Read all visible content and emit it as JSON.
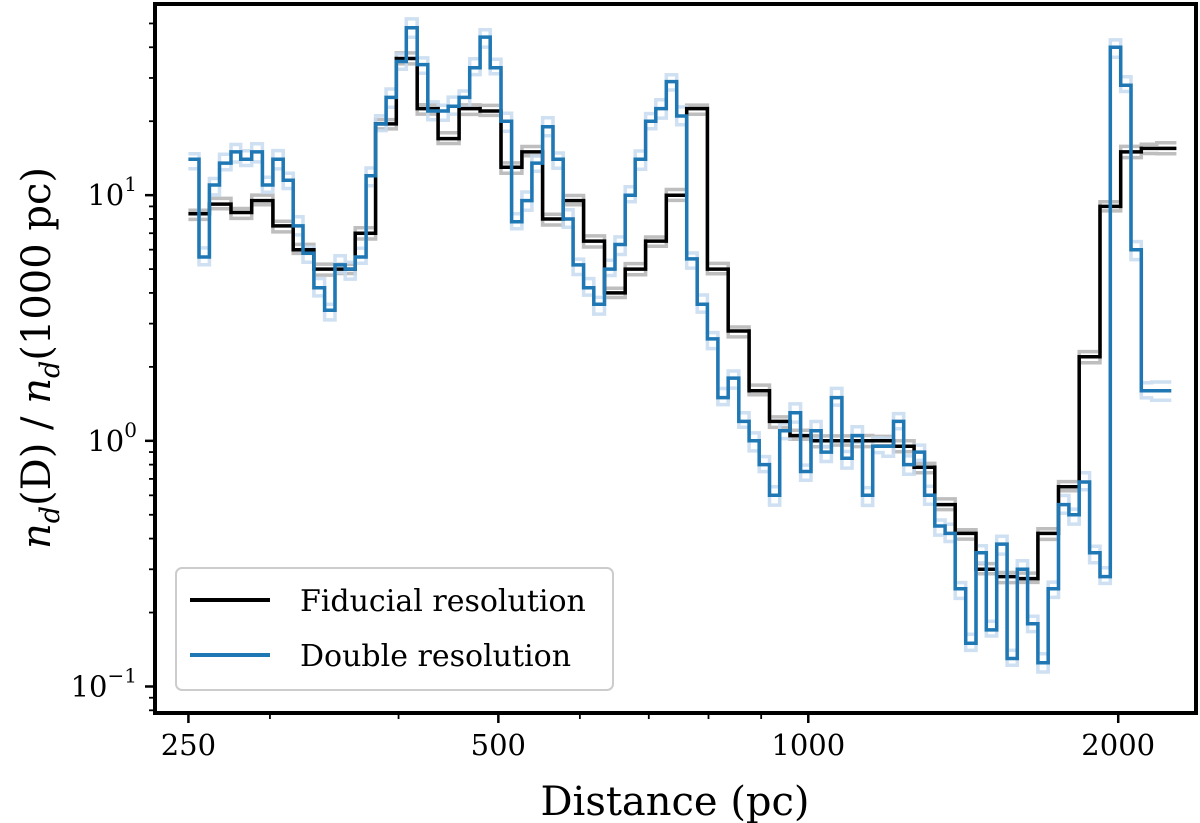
{
  "chart_data": {
    "type": "line",
    "title": "",
    "xlabel": "Distance (pc)",
    "ylabel": "n_d(D) / n_d(1000pc)",
    "ylabel_parts": {
      "n1": "n",
      "sub1": "d",
      "arg1": "(D)",
      "slash": " / ",
      "n2": "n",
      "sub2": "d",
      "arg2": "(1000 pc)"
    },
    "x_scale": "log",
    "y_scale": "log",
    "xlim": [
      232,
      2380
    ],
    "ylim": [
      0.078,
      60
    ],
    "x_ticks": [
      250,
      500,
      1000,
      2000
    ],
    "x_tick_labels": [
      "250",
      "500",
      "1000",
      "2000"
    ],
    "y_ticks": [
      0.1,
      1,
      10
    ],
    "y_tick_labels": [
      {
        "base": "10",
        "exp": "−1"
      },
      {
        "base": "10",
        "exp": "0"
      },
      {
        "base": "10",
        "exp": "1"
      }
    ],
    "legend": {
      "position": "lower-left",
      "entries": [
        "Fiducial resolution",
        "Double resolution"
      ]
    },
    "colors": {
      "fiducial": "#000000",
      "double": "#1f77b4",
      "fiducial_band": "#b3b3b3",
      "double_band": "#c6dbef"
    },
    "series": [
      {
        "name": "Fiducial resolution",
        "step": "post",
        "x": [
          250,
          262,
          275,
          288,
          302,
          316,
          331,
          347,
          363,
          380,
          398,
          417,
          437,
          458,
          480,
          503,
          527,
          552,
          578,
          605,
          634,
          664,
          695,
          728,
          762,
          798,
          836,
          876,
          917,
          960,
          1006,
          1053,
          1103,
          1155,
          1210,
          1267,
          1327,
          1389,
          1455,
          1524,
          1596,
          1671,
          1750,
          1833,
          1920,
          2011,
          2106,
          2180
        ],
        "y": [
          8.4,
          9.2,
          8.5,
          9.5,
          7.5,
          6.0,
          5.0,
          5.0,
          7.0,
          19.5,
          36.0,
          22.5,
          17.0,
          22.5,
          22.0,
          13.0,
          15.0,
          8.0,
          9.5,
          6.5,
          4.0,
          5.0,
          6.5,
          10.0,
          22.5,
          5.0,
          2.8,
          1.6,
          1.2,
          1.05,
          1.0,
          1.0,
          1.0,
          1.0,
          0.95,
          0.78,
          0.55,
          0.42,
          0.3,
          0.28,
          0.275,
          0.42,
          0.65,
          2.2,
          9.0,
          15.0,
          15.5,
          15.5
        ]
      },
      {
        "name": "Double resolution",
        "step": "post",
        "x": [
          250,
          256,
          262,
          268,
          275,
          281,
          288,
          295,
          302,
          309,
          316,
          323,
          331,
          339,
          347,
          355,
          363,
          372,
          380,
          389,
          398,
          407,
          417,
          427,
          437,
          447,
          458,
          469,
          480,
          491,
          503,
          515,
          527,
          539,
          552,
          565,
          578,
          591,
          605,
          619,
          634,
          649,
          664,
          679,
          695,
          711,
          728,
          745,
          762,
          780,
          798,
          817,
          836,
          856,
          876,
          896,
          917,
          938,
          960,
          983,
          1006,
          1029,
          1053,
          1078,
          1103,
          1129,
          1155,
          1182,
          1210,
          1238,
          1267,
          1297,
          1327,
          1358,
          1389,
          1422,
          1455,
          1489,
          1524,
          1560,
          1596,
          1633,
          1671,
          1710,
          1750,
          1791,
          1833,
          1876,
          1920,
          1965,
          2011,
          2058,
          2106,
          2155
        ],
        "y": [
          14.0,
          5.6,
          11.0,
          13.5,
          15.0,
          14.0,
          15.0,
          11.0,
          14.0,
          11.5,
          7.5,
          5.8,
          4.2,
          3.4,
          5.2,
          5.0,
          5.6,
          12.0,
          19.5,
          25.0,
          35.0,
          48.0,
          34.0,
          22.0,
          22.0,
          23.0,
          25.0,
          33.0,
          44.0,
          33.0,
          20.0,
          7.8,
          9.5,
          13.5,
          19.0,
          14.0,
          8.0,
          5.2,
          4.2,
          3.6,
          5.0,
          6.3,
          10.0,
          14.0,
          20.0,
          22.5,
          29.0,
          21.0,
          5.5,
          3.6,
          2.6,
          1.5,
          1.8,
          1.2,
          1.0,
          0.8,
          0.6,
          1.1,
          1.3,
          0.75,
          1.1,
          0.9,
          1.5,
          0.85,
          1.05,
          0.6,
          0.95,
          0.95,
          1.2,
          0.8,
          0.9,
          0.6,
          0.45,
          0.42,
          0.25,
          0.15,
          0.35,
          0.17,
          0.38,
          0.13,
          0.3,
          0.18,
          0.125,
          0.25,
          0.55,
          0.5,
          0.68,
          0.35,
          0.28,
          40.0,
          28.0,
          6.0,
          1.6,
          1.6
        ]
      }
    ]
  }
}
